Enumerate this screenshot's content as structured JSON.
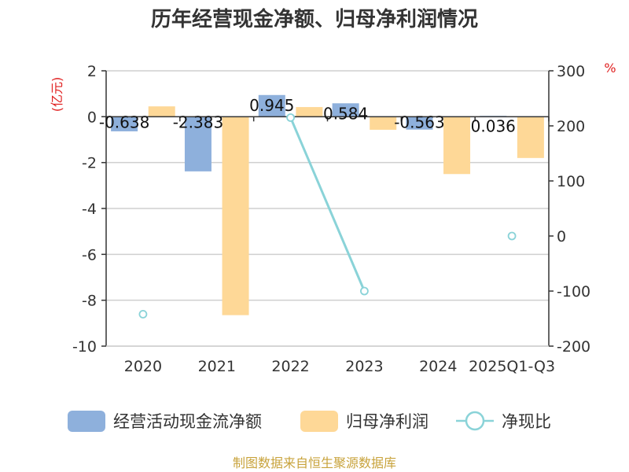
{
  "chart_data": {
    "type": "bar",
    "title": "历年经营现金净额、归母净利润情况",
    "categories": [
      "2020",
      "2021",
      "2022",
      "2023",
      "2024",
      "2025Q1-Q3"
    ],
    "y_left": {
      "unit": "(亿元)",
      "range": [
        -10,
        2
      ],
      "ticks": [
        2,
        0,
        -2,
        -4,
        -6,
        -8,
        -10
      ]
    },
    "y_right": {
      "unit": "%",
      "range": [
        -200,
        300
      ],
      "ticks": [
        300,
        200,
        100,
        0,
        -100,
        -200
      ]
    },
    "grid": true,
    "legend_position": "bottom",
    "series": [
      {
        "name": "经营活动现金流净额",
        "type": "bar",
        "axis": "left",
        "color": "#8eb0dc",
        "values": [
          -0.638,
          -2.383,
          0.945,
          0.584,
          -0.563,
          0.036
        ],
        "labels": [
          "-0.638",
          "-2.383",
          "0.945",
          "0.584",
          "-0.563",
          "0.036"
        ]
      },
      {
        "name": "归母净利润",
        "type": "bar",
        "axis": "left",
        "color": "#fed897",
        "values": [
          0.45,
          -8.65,
          0.42,
          -0.57,
          -2.5,
          -1.8
        ]
      },
      {
        "name": "净现比",
        "type": "line",
        "axis": "right",
        "color": "#8ad3d8",
        "values": [
          -142,
          null,
          215,
          -100,
          null,
          0
        ]
      }
    ],
    "source": "制图数据来自恒生聚源数据库"
  }
}
